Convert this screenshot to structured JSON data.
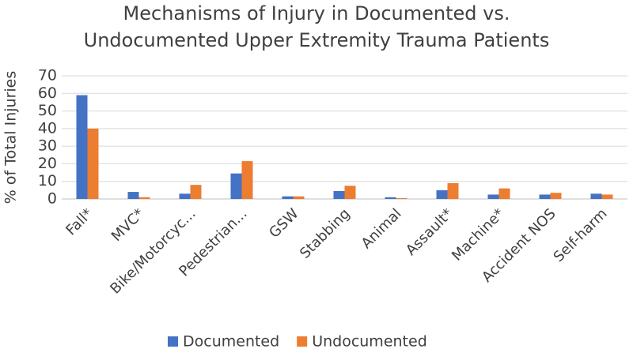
{
  "chart_data": {
    "type": "bar",
    "title": [
      "Mechanisms of Injury in Documented vs.",
      "Undocumented Upper Extremity Trauma Patients"
    ],
    "y_label": "% of Total Injuries",
    "categories": [
      "Fall*",
      "MVC*",
      "Bike/Motorcyc...",
      "Pedestrian...",
      "GSW",
      "Stabbing",
      "Animal",
      "Assault*",
      "Machine*",
      "Accident NOS",
      "Self-harm"
    ],
    "series": [
      {
        "name": "Documented",
        "color": "#4472c4",
        "values": [
          59,
          4,
          3,
          14.5,
          1.5,
          4.5,
          1,
          5,
          2.5,
          2.5,
          3
        ]
      },
      {
        "name": "Undocumented",
        "color": "#ed7d31",
        "values": [
          40,
          1,
          8,
          21.5,
          1.5,
          7.5,
          0.5,
          9,
          6,
          3.5,
          2.5
        ]
      }
    ],
    "ylim": [
      0,
      70
    ],
    "yticks": [
      0,
      10,
      20,
      30,
      40,
      50,
      60,
      70
    ],
    "grid": true,
    "legend": "bottom"
  }
}
